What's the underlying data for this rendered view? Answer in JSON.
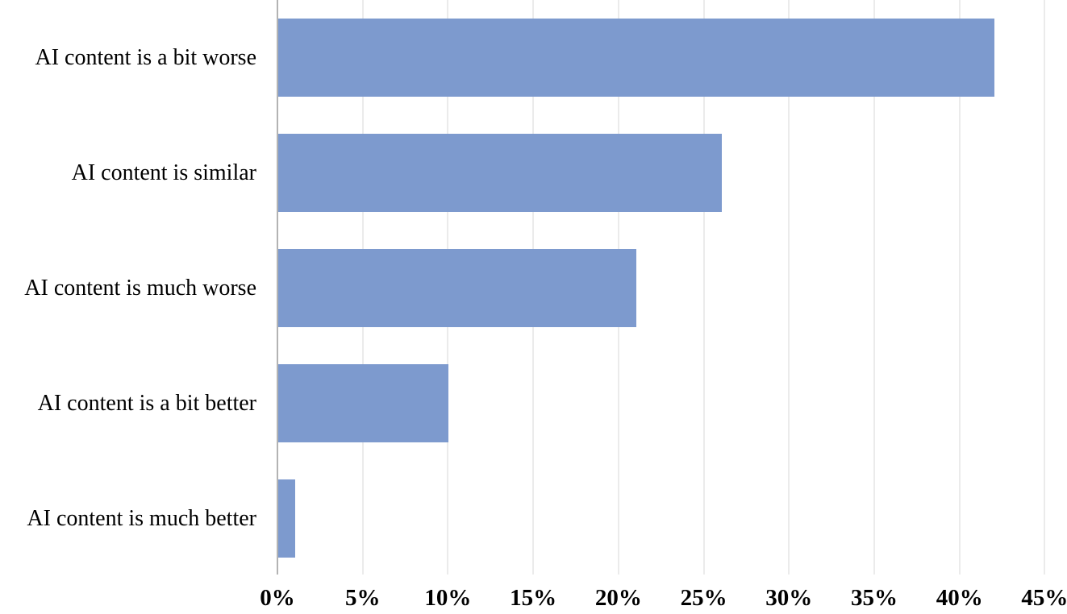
{
  "chart_data": {
    "type": "bar",
    "orientation": "horizontal",
    "title": "",
    "xlabel": "",
    "ylabel": "",
    "categories": [
      "AI content is a bit worse",
      "AI content is similar",
      "AI content is much worse",
      "AI content is a bit better",
      "AI content is much better"
    ],
    "values": [
      42,
      26,
      21,
      10,
      1
    ],
    "value_unit": "percent",
    "xlim": [
      0,
      45
    ],
    "x_tick_values": [
      0,
      5,
      10,
      15,
      20,
      25,
      30,
      35,
      40,
      45
    ],
    "x_tick_labels": [
      "0%",
      "5%",
      "10%",
      "15%",
      "20%",
      "25%",
      "30%",
      "35%",
      "40%",
      "45%"
    ],
    "grid": "vertical-on",
    "legend": "none",
    "colors": {
      "bar_fill": "#7D9ACE",
      "gridline": "#EBEBEB",
      "axis_line": "#B3B3B3",
      "text": "#000000",
      "background": "#FFFFFF"
    }
  }
}
